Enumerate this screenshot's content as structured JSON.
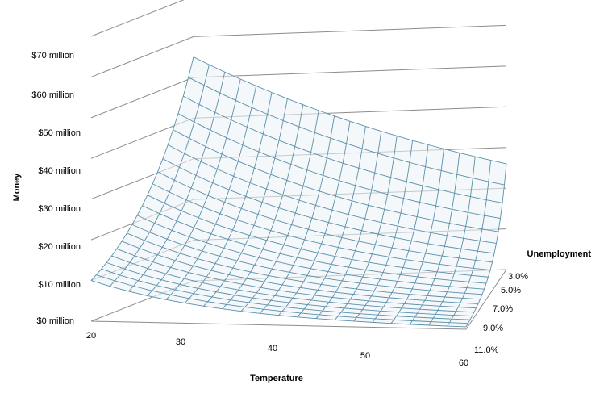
{
  "chart_data": {
    "type": "surface",
    "title": "",
    "xlabel": "Temperature",
    "ylabel": "Money",
    "zlabel": "Unemployment",
    "x_ticks": [
      "20",
      "30",
      "40",
      "50",
      "60"
    ],
    "y_ticks": [
      "$0 million",
      "$10 million",
      "$20 million",
      "$30 million",
      "$40 million",
      "$50 million",
      "$60 million",
      "$70 million"
    ],
    "z_ticks": [
      "3.0%",
      "5.0%",
      "7.0%",
      "9.0%",
      "11.0%"
    ],
    "xlim": [
      20,
      60
    ],
    "ylim": [
      0,
      70
    ],
    "zlim": [
      3.0,
      11.0
    ],
    "grid": true,
    "legend": "none",
    "surface_corners": {
      "temp20_unemp3": 55,
      "temp20_unemp11": 10,
      "temp60_unemp3": 26,
      "temp60_unemp11": 0
    },
    "colors": {
      "surface_line": "#5a8fa8",
      "gridline": "#8c8c8c"
    }
  }
}
